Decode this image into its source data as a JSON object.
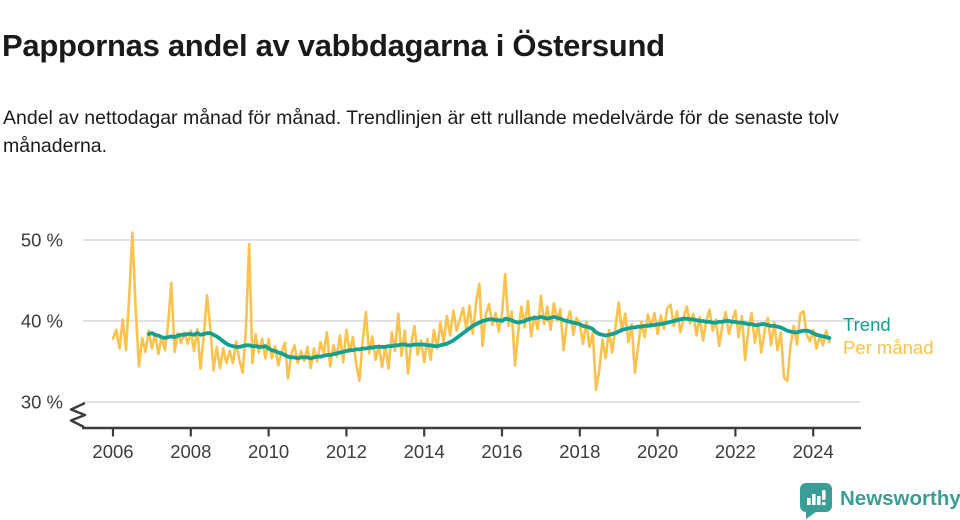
{
  "header": {
    "title": "Pappornas andel av vabbdagarna i Östersund",
    "subtitle": "Andel av nettodagar månad för månad. Trendlinjen är ett rullande medelvärde för de senaste tolv månaderna."
  },
  "chart_data": {
    "type": "line",
    "title": "Pappornas andel av vabbdagarna i Östersund",
    "subtitle": "Andel av nettodagar månad för månad. Trendlinjen är ett rullande medelvärde för de senaste tolv månaderna.",
    "unit": "%",
    "x_range": [
      "2006-01",
      "2024-06"
    ],
    "ylim_shown": [
      30,
      51
    ],
    "axis_break_below": 30,
    "grid": "horizontal",
    "y_ticks": [
      {
        "label": "50 %",
        "value": 50
      },
      {
        "label": "40 %",
        "value": 40
      },
      {
        "label": "30 %",
        "value": 30
      }
    ],
    "x_ticks": [
      {
        "label": "2006",
        "value": 2006
      },
      {
        "label": "2008",
        "value": 2008
      },
      {
        "label": "2010",
        "value": 2010
      },
      {
        "label": "2012",
        "value": 2012
      },
      {
        "label": "2014",
        "value": 2014
      },
      {
        "label": "2016",
        "value": 2016
      },
      {
        "label": "2018",
        "value": 2018
      },
      {
        "label": "2020",
        "value": 2020
      },
      {
        "label": "2022",
        "value": 2022
      },
      {
        "label": "2024",
        "value": 2024
      }
    ],
    "legend": [
      {
        "label": "Trend",
        "color": "#14a090"
      },
      {
        "label": "Per månad",
        "color": "#fbc34e"
      }
    ],
    "series": [
      {
        "name": "Per månad",
        "color": "#fbc34e",
        "start": "2006-01",
        "values": [
          37.8,
          38.9,
          36.6,
          40.2,
          36.4,
          43.0,
          50.9,
          41.5,
          34.4,
          37.9,
          36.2,
          38.8,
          36.6,
          38.4,
          35.9,
          38.1,
          36.4,
          39.6,
          44.7,
          36.2,
          38.5,
          37.3,
          38.6,
          37.2,
          38.8,
          36.3,
          39.0,
          34.1,
          38.2,
          43.2,
          39.1,
          33.9,
          36.8,
          34.2,
          36.6,
          34.8,
          36.3,
          34.8,
          37.5,
          35.2,
          33.6,
          38.9,
          49.5,
          34.8,
          38.4,
          36.1,
          37.8,
          35.4,
          37.8,
          35.4,
          36.9,
          34.5,
          36.2,
          37.3,
          32.9,
          35.9,
          37.0,
          34.8,
          36.3,
          35.1,
          36.8,
          34.2,
          36.6,
          35.0,
          37.4,
          36.0,
          38.6,
          34.4,
          37.0,
          35.6,
          38.2,
          34.9,
          38.9,
          36.2,
          38.0,
          34.8,
          32.6,
          37.5,
          41.1,
          36.0,
          38.1,
          35.2,
          37.0,
          34.3,
          36.9,
          34.1,
          38.6,
          36.3,
          40.9,
          35.7,
          38.8,
          33.5,
          37.2,
          39.4,
          35.8,
          37.6,
          34.9,
          37.8,
          35.2,
          38.9,
          36.6,
          39.8,
          37.4,
          40.6,
          38.2,
          41.3,
          38.8,
          40.2,
          41.6,
          39.0,
          41.9,
          38.4,
          42.3,
          44.6,
          36.9,
          40.8,
          42.1,
          39.5,
          41.0,
          38.7,
          40.9,
          45.8,
          39.4,
          41.2,
          34.5,
          38.6,
          41.8,
          39.2,
          42.5,
          38.1,
          40.6,
          39.0,
          43.1,
          39.6,
          41.8,
          38.9,
          42.2,
          40.1,
          41.5,
          36.4,
          39.8,
          41.2,
          38.3,
          40.4,
          39.6,
          37.2,
          39.9,
          36.8,
          38.5,
          31.5,
          34.0,
          37.7,
          35.4,
          38.9,
          36.1,
          39.3,
          42.3,
          38.7,
          40.9,
          37.4,
          39.6,
          33.6,
          36.8,
          39.9,
          38.0,
          40.8,
          39.2,
          41.0,
          38.4,
          40.7,
          39.0,
          41.6,
          42.0,
          39.4,
          41.2,
          38.6,
          40.3,
          41.8,
          39.7,
          40.9,
          38.2,
          40.5,
          37.6,
          39.9,
          41.4,
          38.8,
          40.2,
          36.9,
          39.5,
          41.1,
          38.4,
          40.0,
          41.3,
          38.0,
          40.6,
          35.2,
          38.9,
          41.0,
          37.3,
          39.7,
          36.1,
          38.8,
          40.4,
          37.0,
          39.8,
          36.4,
          38.6,
          33.0,
          32.6,
          36.9,
          39.4,
          37.1,
          40.9,
          41.2,
          38.3,
          37.5,
          38.9,
          36.6,
          38.2,
          37.0,
          38.8,
          37.4
        ]
      },
      {
        "name": "Trend",
        "color": "#14a090",
        "start": "2006-12",
        "values": [
          38.4,
          38.5,
          38.3,
          38.2,
          38.0,
          37.9,
          38.0,
          38.1,
          38.0,
          38.2,
          38.3,
          38.3,
          38.4,
          38.4,
          38.3,
          38.5,
          38.3,
          38.4,
          38.5,
          38.5,
          38.3,
          38.1,
          37.8,
          37.5,
          37.2,
          37.0,
          36.9,
          36.8,
          36.8,
          36.9,
          37.0,
          37.0,
          36.9,
          36.9,
          36.8,
          36.8,
          36.9,
          36.6,
          36.4,
          36.3,
          36.1,
          36.0,
          35.8,
          35.6,
          35.5,
          35.5,
          35.4,
          35.5,
          35.5,
          35.5,
          35.4,
          35.5,
          35.6,
          35.6,
          35.7,
          35.8,
          35.8,
          35.9,
          36.0,
          36.1,
          36.2,
          36.3,
          36.4,
          36.4,
          36.5,
          36.5,
          36.6,
          36.6,
          36.7,
          36.7,
          36.8,
          36.8,
          36.8,
          36.8,
          36.9,
          36.9,
          37.0,
          37.0,
          37.1,
          37.1,
          37.0,
          37.0,
          37.1,
          37.1,
          37.1,
          37.1,
          37.0,
          37.0,
          36.9,
          36.9,
          37.0,
          37.1,
          37.2,
          37.4,
          37.6,
          37.9,
          38.2,
          38.5,
          38.8,
          39.1,
          39.4,
          39.6,
          39.8,
          40.0,
          40.1,
          40.2,
          40.2,
          40.1,
          40.1,
          40.0,
          40.3,
          40.2,
          40.1,
          39.9,
          39.8,
          39.9,
          40.0,
          40.2,
          40.3,
          40.4,
          40.4,
          40.5,
          40.4,
          40.3,
          40.4,
          40.5,
          40.4,
          40.3,
          40.1,
          40.0,
          39.9,
          39.8,
          39.7,
          39.6,
          39.4,
          39.3,
          39.2,
          39.0,
          38.6,
          38.4,
          38.3,
          38.2,
          38.3,
          38.4,
          38.5,
          38.7,
          38.9,
          39.0,
          39.1,
          39.2,
          39.2,
          39.3,
          39.3,
          39.4,
          39.4,
          39.5,
          39.5,
          39.6,
          39.6,
          39.7,
          39.8,
          39.9,
          40.0,
          40.1,
          40.2,
          40.3,
          40.3,
          40.2,
          40.2,
          40.1,
          40.0,
          40.0,
          39.9,
          39.9,
          39.8,
          39.8,
          39.9,
          39.9,
          40.0,
          40.0,
          39.9,
          39.9,
          39.8,
          39.8,
          39.7,
          39.6,
          39.6,
          39.5,
          39.5,
          39.6,
          39.6,
          39.5,
          39.4,
          39.4,
          39.3,
          39.2,
          39.0,
          38.8,
          38.7,
          38.6,
          38.6,
          38.7,
          38.8,
          38.8,
          38.7,
          38.5,
          38.3,
          38.2,
          38.1,
          38.0,
          37.9
        ]
      }
    ],
    "colors": {
      "grid": "#d9d9d9",
      "axis": "#3c3c3c",
      "per_month": "#fbc34e",
      "trend": "#14a090"
    }
  },
  "footer": {
    "brand": "Newsworthy",
    "brand_color": "#3a9e97",
    "logo_icon": "bar-chart-speech-bubble-icon"
  }
}
